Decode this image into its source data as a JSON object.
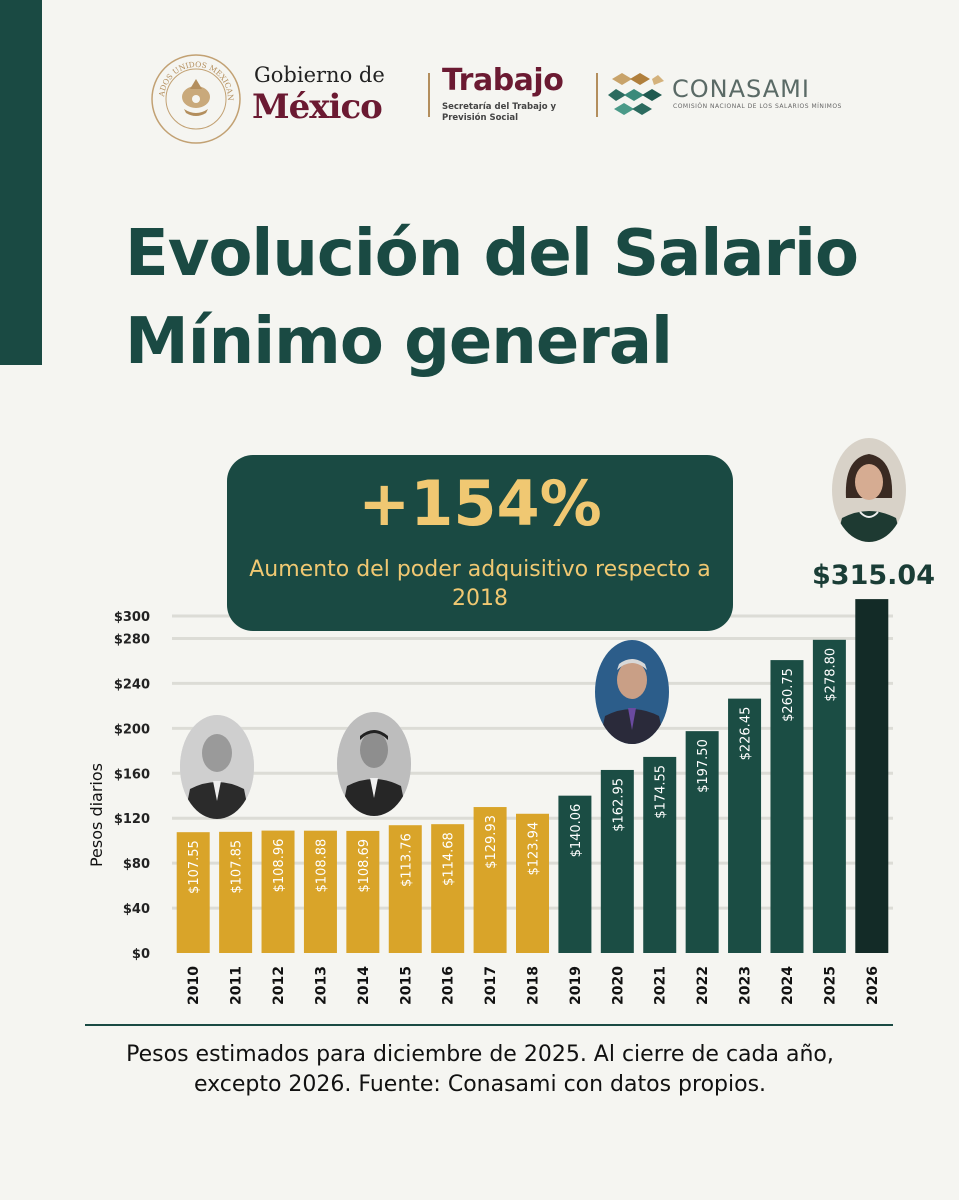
{
  "header": {
    "seal_text": "ESTADOS UNIDOS MEXICANOS",
    "gobierno_line1": "Gobierno de",
    "gobierno_line2": "México",
    "trabajo_title": "Trabajo",
    "trabajo_subtitle": "Secretaría del Trabajo y Previsión Social",
    "conasami_name": "CONASAMI",
    "conasami_subtitle": "COMISIÓN NACIONAL DE LOS SALARIOS MÍNIMOS"
  },
  "title": "Evolución del Salario Mínimo general",
  "badge": {
    "value": "+154%",
    "text": "Aumento del poder adquisitivo respecto a 2018"
  },
  "final_value_label": "$315.04",
  "footnote": "Pesos estimados para diciembre de 2025. Al cierre de cada año,\nexcepto 2026. Fuente: Conasami con datos propios.",
  "colors": {
    "dark_green": "#1a4a43",
    "bar_green": "#1b4d44",
    "bar_final": "#132b27",
    "bar_gold": "#d9a429",
    "badge_text": "#f0c872",
    "guinda": "#6b1a32"
  },
  "chart_data": {
    "type": "bar",
    "title": "",
    "xlabel": "",
    "ylabel": "Pesos diarios",
    "ylim": [
      0,
      300
    ],
    "yticks": [
      0,
      40,
      80,
      120,
      160,
      200,
      240,
      280,
      300
    ],
    "ytick_labels": [
      "$0",
      "$40",
      "$80",
      "$120",
      "$160",
      "$200",
      "$240",
      "$280",
      "$300"
    ],
    "grid": true,
    "categories": [
      "2010",
      "2011",
      "2012",
      "2013",
      "2014",
      "2015",
      "2016",
      "2017",
      "2018",
      "2019",
      "2020",
      "2021",
      "2022",
      "2023",
      "2024",
      "2025",
      "2026"
    ],
    "values": [
      107.55,
      107.85,
      108.96,
      108.88,
      108.69,
      113.76,
      114.68,
      129.93,
      123.94,
      140.06,
      162.95,
      174.55,
      197.5,
      226.45,
      260.75,
      278.8,
      315.04
    ],
    "data_labels": [
      "$107.55",
      "$107.85",
      "$108.96",
      "$108.88",
      "$108.69",
      "$113.76",
      "$114.68",
      "$129.93",
      "$123.94",
      "$140.06",
      "$162.95",
      "$174.55",
      "$197.50",
      "$226.45",
      "$260.75",
      "$278.80",
      ""
    ],
    "bar_colors": [
      "#d9a429",
      "#d9a429",
      "#d9a429",
      "#d9a429",
      "#d9a429",
      "#d9a429",
      "#d9a429",
      "#d9a429",
      "#d9a429",
      "#1b4d44",
      "#1b4d44",
      "#1b4d44",
      "#1b4d44",
      "#1b4d44",
      "#1b4d44",
      "#1b4d44",
      "#132b27"
    ]
  }
}
